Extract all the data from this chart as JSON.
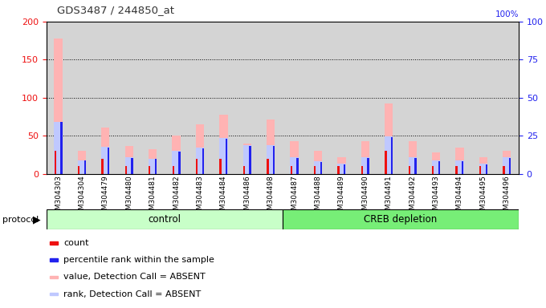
{
  "title": "GDS3487 / 244850_at",
  "samples": [
    "GSM304303",
    "GSM304304",
    "GSM304479",
    "GSM304480",
    "GSM304481",
    "GSM304482",
    "GSM304483",
    "GSM304484",
    "GSM304486",
    "GSM304498",
    "GSM304487",
    "GSM304488",
    "GSM304489",
    "GSM304490",
    "GSM304491",
    "GSM304492",
    "GSM304493",
    "GSM304494",
    "GSM304495",
    "GSM304496"
  ],
  "value_absent": [
    178,
    30,
    61,
    37,
    33,
    50,
    65,
    78,
    40,
    72,
    43,
    30,
    22,
    43,
    93,
    43,
    28,
    35,
    22,
    30
  ],
  "rank_absent": [
    68,
    18,
    36,
    22,
    20,
    30,
    35,
    47,
    38,
    38,
    22,
    17,
    14,
    22,
    49,
    22,
    18,
    18,
    14,
    22
  ],
  "count_red": [
    3,
    1,
    2,
    1,
    1,
    1,
    2,
    2,
    1,
    2,
    1,
    1,
    1,
    1,
    3,
    1,
    1,
    1,
    1,
    1
  ],
  "percentile_blue": [
    68,
    18,
    35,
    21,
    20,
    29,
    34,
    46,
    37,
    37,
    21,
    16,
    13,
    21,
    48,
    21,
    17,
    17,
    13,
    21
  ],
  "control_count": 10,
  "creb_count": 10,
  "group_labels": [
    "control",
    "CREB depletion"
  ],
  "protocol_label": "protocol",
  "ylim_left": [
    0,
    200
  ],
  "ylim_right": [
    0,
    100
  ],
  "yticks_left": [
    0,
    50,
    100,
    150,
    200
  ],
  "yticks_right": [
    0,
    25,
    50,
    75,
    100
  ],
  "grid_values": [
    50,
    100,
    150
  ],
  "color_value_absent": "#FFB3B3",
  "color_rank_absent": "#BFC8FF",
  "color_count": "#EE1111",
  "color_percentile": "#2222EE",
  "color_control_bg": "#C8FFC8",
  "color_creb_bg": "#77EE77",
  "color_bar_bg": "#D4D4D4",
  "color_bg": "#FFFFFF",
  "legend_items": [
    {
      "label": "count",
      "color": "#EE1111"
    },
    {
      "label": "percentile rank within the sample",
      "color": "#2222EE"
    },
    {
      "label": "value, Detection Call = ABSENT",
      "color": "#FFB3B3"
    },
    {
      "label": "rank, Detection Call = ABSENT",
      "color": "#BFC8FF"
    }
  ]
}
